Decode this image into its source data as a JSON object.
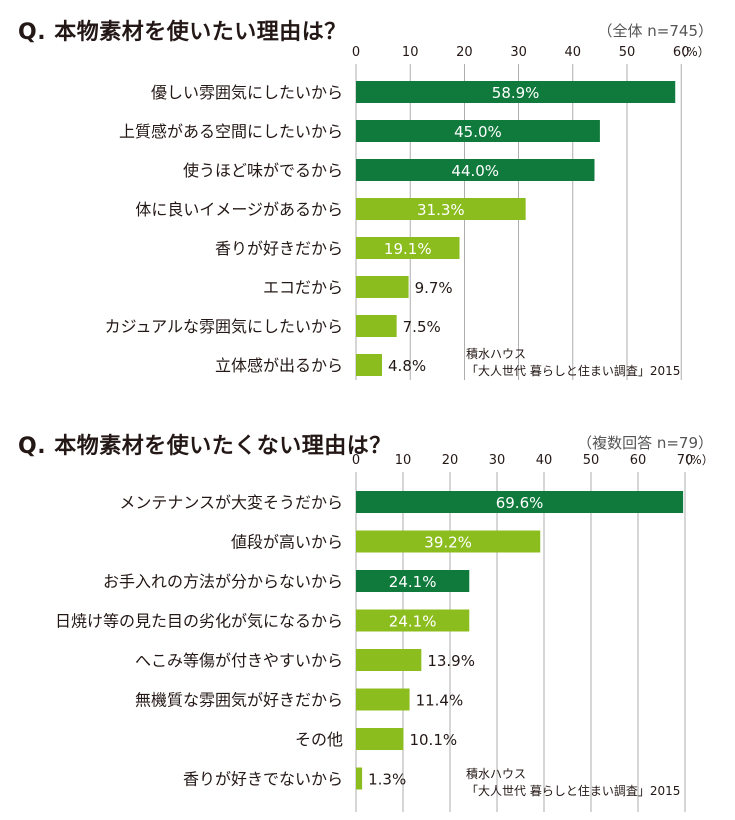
{
  "chart_data": [
    {
      "type": "bar",
      "orientation": "horizontal",
      "title": "Q. 本物素材を使いたい理由は？",
      "sample": "（全体 n=745）",
      "unit_label": "（%）",
      "xlim": [
        0,
        60
      ],
      "ticks": [
        0,
        10,
        20,
        30,
        40,
        50,
        60
      ],
      "grid": true,
      "categories": [
        "優しい雰囲気にしたいから",
        "上質感がある空間にしたいから",
        "使うほど味がでるから",
        "体に良いイメージがあるから",
        "香りが好きだから",
        "エコだから",
        "カジュアルな雰囲気にしたいから",
        "立体感が出るから"
      ],
      "values": [
        58.9,
        45.0,
        44.0,
        31.3,
        19.1,
        9.7,
        7.5,
        4.8
      ],
      "value_labels": [
        "58.9%",
        "45.0%",
        "44.0%",
        "31.3%",
        "19.1%",
        "9.7%",
        "7.5%",
        "4.8%"
      ],
      "bar_colors": [
        "#0f7a3c",
        "#0f7a3c",
        "#0f7a3c",
        "#8cbd1e",
        "#8cbd1e",
        "#8cbd1e",
        "#8cbd1e",
        "#8cbd1e"
      ],
      "source_lines": [
        "積水ハウス",
        "「大人世代 暮らしと住まい調査」2015"
      ]
    },
    {
      "type": "bar",
      "orientation": "horizontal",
      "title": "Q. 本物素材を使いたくない理由は？",
      "sample": "（複数回答 n=79）",
      "unit_label": "（%）",
      "xlim": [
        0,
        70
      ],
      "ticks": [
        0,
        10,
        20,
        30,
        40,
        50,
        60,
        70
      ],
      "grid": true,
      "categories": [
        "メンテナンスが大変そうだから",
        "値段が高いから",
        "お手入れの方法が分からないから",
        "日焼け等の見た目の劣化が気になるから",
        "へこみ等傷が付きやすいから",
        "無機質な雰囲気が好きだから",
        "その他",
        "香りが好きでないから"
      ],
      "values": [
        69.6,
        39.2,
        24.1,
        24.1,
        13.9,
        11.4,
        10.1,
        1.3
      ],
      "value_labels": [
        "69.6%",
        "39.2%",
        "24.1%",
        "24.1%",
        "13.9%",
        "11.4%",
        "10.1%",
        "1.3%"
      ],
      "bar_colors": [
        "#0f7a3c",
        "#8cbd1e",
        "#0f7a3c",
        "#8cbd1e",
        "#8cbd1e",
        "#8cbd1e",
        "#8cbd1e",
        "#8cbd1e"
      ],
      "source_lines": [
        "積水ハウス",
        "「大人世代 暮らしと住まい調査」2015"
      ]
    }
  ]
}
